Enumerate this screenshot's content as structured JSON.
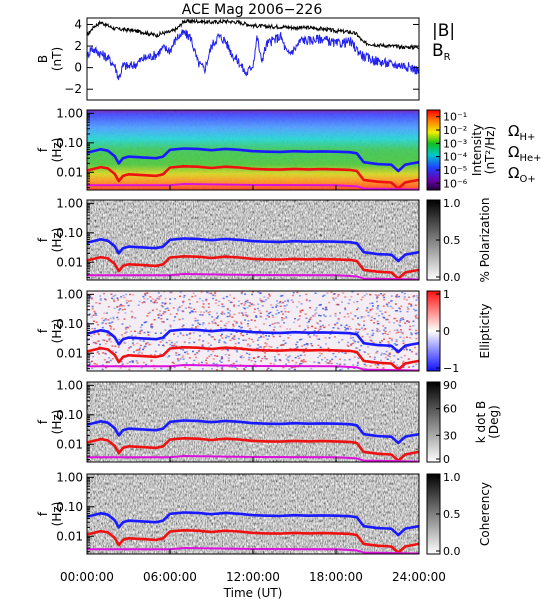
{
  "chart_data": {
    "type": "line",
    "title": "ACE Mag 2006−226",
    "xlabel": "Time (UT)",
    "xticks": [
      "00:00:00",
      "06:00:00",
      "12:00:00",
      "18:00:00",
      "24:00:00"
    ],
    "xlim_hours": [
      0,
      24
    ],
    "panels": [
      {
        "name": "field",
        "ylabel_line1": "B",
        "ylabel_line2": "(nT)",
        "ylim": [
          -3,
          4.6
        ],
        "yticks": [
          "4",
          "2",
          "0",
          "−2"
        ],
        "yticks_values": [
          4,
          2,
          0,
          -2
        ],
        "series": [
          {
            "name": "|B|",
            "color": "#000000",
            "x": [
              0,
              0.5,
              1,
              1.5,
              2,
              3,
              4,
              5,
              5.5,
              6,
              6.5,
              7,
              8,
              9,
              10,
              11,
              12,
              13,
              14,
              15,
              16,
              17,
              18,
              19,
              19.5,
              20,
              21,
              22,
              23,
              24
            ],
            "y": [
              3.0,
              3.8,
              4.2,
              3.9,
              3.6,
              3.5,
              3.3,
              3.0,
              3.2,
              3.3,
              3.6,
              4.3,
              4.3,
              4.2,
              4.3,
              4.2,
              3.9,
              3.8,
              3.8,
              3.7,
              3.7,
              3.6,
              3.4,
              3.3,
              3.1,
              2.3,
              2.1,
              2.0,
              1.9,
              1.9
            ]
          },
          {
            "name": "B_R",
            "color": "#2222ee",
            "x": [
              0,
              0.3,
              1,
              1.5,
              2,
              2.3,
              2.6,
              3,
              3.5,
              4,
              5,
              5.5,
              6,
              6.5,
              7,
              7.5,
              8,
              8.5,
              9,
              9.5,
              10,
              10.5,
              11,
              11.5,
              12,
              12.3,
              12.6,
              13,
              14,
              14.5,
              15,
              15.5,
              16,
              17,
              18,
              19,
              20,
              21,
              22,
              23,
              24
            ],
            "y": [
              1.0,
              1.8,
              1.3,
              0.9,
              0.2,
              -1.0,
              0.2,
              0.1,
              0.3,
              0.8,
              1.2,
              1.8,
              1.6,
              2.8,
              3.2,
              2.8,
              0.5,
              -0.2,
              2.0,
              2.9,
              2.5,
              1.2,
              0.5,
              -0.6,
              0.3,
              2.9,
              0.6,
              2.2,
              2.9,
              1.2,
              1.7,
              2.6,
              2.5,
              2.7,
              2.2,
              2.4,
              1.0,
              0.6,
              0.3,
              0.2,
              -0.3
            ]
          }
        ]
      },
      {
        "name": "power",
        "ylabel_line1": "f",
        "ylabel_line2": "(Hz)",
        "colorbar_label_line1": "Intensity",
        "colorbar_label_line2": "(nT²/Hz)",
        "colorbar_ticks": [
          "10⁻¹",
          "10⁻²",
          "10⁻³",
          "10⁻⁴",
          "10⁻⁵",
          "10⁻⁶"
        ],
        "colorbar_range_exp": [
          -6.5,
          -0.5
        ],
        "colormap": "rainbow"
      },
      {
        "name": "polarization",
        "ylabel_line1": "f",
        "ylabel_line2": "(Hz)",
        "colorbar_label": "% Polarization",
        "colorbar_ticks": [
          "1.0",
          "0.5",
          "0.0"
        ],
        "colorbar_range": [
          0,
          1
        ],
        "colormap": "gray"
      },
      {
        "name": "ellipticity",
        "ylabel_line1": "f",
        "ylabel_line2": "(Hz)",
        "colorbar_label": "Ellipticity",
        "colorbar_ticks": [
          "1",
          "0",
          "−1"
        ],
        "colorbar_range": [
          -1,
          1
        ],
        "colormap": "blue-white-red"
      },
      {
        "name": "wave-normal",
        "ylabel_line1": "f",
        "ylabel_line2": "(Hz)",
        "colorbar_label_line1": "k dot B",
        "colorbar_label_line2": "(Deg)",
        "colorbar_ticks": [
          "90",
          "60",
          "30",
          "0"
        ],
        "colorbar_range": [
          0,
          90
        ],
        "colormap": "gray"
      },
      {
        "name": "coherency",
        "ylabel_line1": "f",
        "ylabel_line2": "(Hz)",
        "colorbar_label": "Coherency",
        "colorbar_ticks": [
          "1.0",
          "0.5",
          "0.0"
        ],
        "colorbar_range": [
          0,
          1
        ],
        "colormap": "gray"
      }
    ],
    "freq_axis": {
      "scale": "log",
      "ylim": [
        0.0025,
        1.3
      ],
      "yticks": [
        "1.00",
        "0.10",
        "0.01"
      ],
      "yticks_values": [
        1.0,
        0.1,
        0.01
      ]
    },
    "gyrofrequency_series": [
      {
        "name": "Ω_H+",
        "color": "#1a1aff",
        "x": [
          0,
          1,
          1.5,
          2,
          2.3,
          2.6,
          3,
          4,
          5,
          5.5,
          6,
          7,
          8,
          9,
          10,
          11,
          12,
          13,
          14,
          15,
          16,
          17,
          18,
          19,
          19.5,
          20,
          21,
          22,
          22.5,
          23,
          23.5,
          24
        ],
        "y": [
          0.046,
          0.06,
          0.054,
          0.035,
          0.02,
          0.03,
          0.034,
          0.032,
          0.03,
          0.034,
          0.058,
          0.064,
          0.062,
          0.056,
          0.062,
          0.058,
          0.052,
          0.05,
          0.049,
          0.052,
          0.05,
          0.051,
          0.05,
          0.048,
          0.044,
          0.022,
          0.019,
          0.018,
          0.011,
          0.018,
          0.02,
          0.022
        ]
      },
      {
        "name": "Ω_He+",
        "color": "#ee1111",
        "x": [
          0,
          1,
          1.5,
          2,
          2.3,
          2.6,
          3,
          4,
          5,
          5.5,
          6,
          7,
          8,
          9,
          10,
          11,
          12,
          13,
          14,
          15,
          16,
          17,
          18,
          19,
          19.5,
          20,
          21,
          22,
          22.5,
          23,
          23.5,
          24
        ],
        "y": [
          0.0115,
          0.015,
          0.0135,
          0.0088,
          0.005,
          0.0075,
          0.0085,
          0.008,
          0.0075,
          0.0085,
          0.0145,
          0.016,
          0.0155,
          0.014,
          0.0155,
          0.0145,
          0.013,
          0.0125,
          0.0123,
          0.013,
          0.0125,
          0.0128,
          0.0125,
          0.012,
          0.011,
          0.0055,
          0.0048,
          0.0045,
          0.0028,
          0.0045,
          0.005,
          0.0055
        ]
      },
      {
        "name": "Ω_O+",
        "color": "#dd11dd",
        "x": [
          0,
          6,
          7,
          12,
          18,
          19.5,
          20,
          24
        ],
        "y": [
          0.0036,
          0.0036,
          0.004,
          0.0037,
          0.0036,
          0.0033,
          0.0028,
          0.0026
        ]
      }
    ],
    "legend": {
      "field": [
        "|B|",
        "B_R"
      ],
      "gyro": [
        "Ω_H+",
        "Ω_He+",
        "Ω_O+"
      ]
    }
  }
}
